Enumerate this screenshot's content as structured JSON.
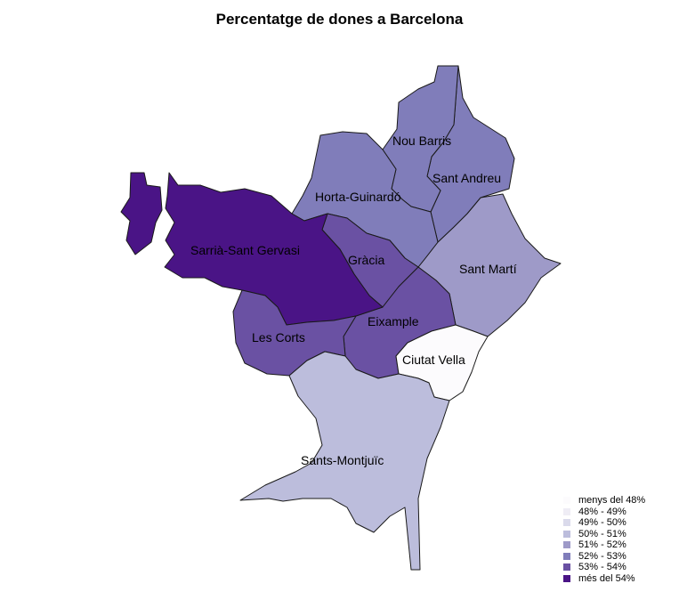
{
  "title": "Percentatge de dones a Barcelona",
  "districts": [
    {
      "id": "ciutat-vella",
      "name": "Ciutat Vella",
      "class": 0
    },
    {
      "id": "eixample",
      "name": "Eixample",
      "class": 6
    },
    {
      "id": "sants-montjuic",
      "name": "Sants-Montjuïc",
      "class": 3
    },
    {
      "id": "les-corts",
      "name": "Les Corts",
      "class": 6
    },
    {
      "id": "sarria-sant-gervasi",
      "name": "Sarrià-Sant Gervasi",
      "class": 7
    },
    {
      "id": "gracia",
      "name": "Gràcia",
      "class": 6
    },
    {
      "id": "horta-guinardo",
      "name": "Horta-Guinardó",
      "class": 5
    },
    {
      "id": "nou-barris",
      "name": "Nou Barris",
      "class": 5
    },
    {
      "id": "sant-andreu",
      "name": "Sant Andreu",
      "class": 5
    },
    {
      "id": "sant-marti",
      "name": "Sant Martí",
      "class": 4
    }
  ],
  "legend": [
    {
      "label": "menys del 48%",
      "color": "#fcfbfd"
    },
    {
      "label": "48% - 49%",
      "color": "#efedf5"
    },
    {
      "label": "49% - 50%",
      "color": "#dadaeb"
    },
    {
      "label": "50% - 51%",
      "color": "#bcbddc"
    },
    {
      "label": "51% - 52%",
      "color": "#9e9ac8"
    },
    {
      "label": "52% - 53%",
      "color": "#807dba"
    },
    {
      "label": "53% - 54%",
      "color": "#6a51a3"
    },
    {
      "label": "més del 54%",
      "color": "#4a1486"
    }
  ]
}
